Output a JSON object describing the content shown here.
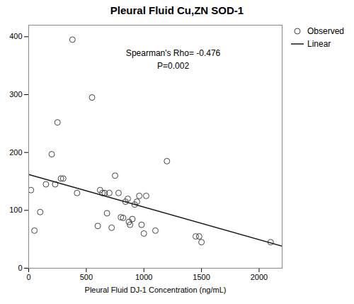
{
  "chart_data": {
    "type": "scatter",
    "title": "Pleural Fluid Cu,ZN SOD-1",
    "xlabel": "Pleural Fluid DJ-1 Concentration (ng/mL)",
    "annotations": [
      "Spearman's Rho= -0.476",
      "P=0.002"
    ],
    "xlim": [
      0,
      2200
    ],
    "ylim": [
      0,
      420
    ],
    "xticks": [
      0,
      500,
      1000,
      1500,
      2000
    ],
    "yticks": [
      0,
      100,
      200,
      300,
      400
    ],
    "grid": false,
    "legend": "right",
    "series": [
      {
        "name": "Observed",
        "type": "scatter",
        "color": "#444444",
        "marker": "circle",
        "x": [
          20,
          50,
          100,
          150,
          200,
          230,
          250,
          280,
          300,
          380,
          420,
          550,
          600,
          620,
          640,
          660,
          680,
          700,
          720,
          750,
          780,
          800,
          820,
          840,
          860,
          870,
          880,
          900,
          920,
          940,
          960,
          980,
          1000,
          1020,
          1100,
          1200,
          1450,
          1480,
          1500,
          2100
        ],
        "values": [
          135,
          65,
          97,
          145,
          197,
          145,
          252,
          155,
          155,
          395,
          130,
          295,
          73,
          135,
          130,
          130,
          95,
          130,
          70,
          160,
          130,
          88,
          87,
          115,
          120,
          80,
          75,
          85,
          110,
          115,
          125,
          75,
          60,
          125,
          65,
          185,
          55,
          55,
          45,
          45
        ]
      },
      {
        "name": "Linear",
        "type": "line",
        "color": "#1a1a1a",
        "line_style": "solid",
        "x": [
          0,
          2200
        ],
        "values": [
          162,
          38
        ]
      }
    ]
  }
}
